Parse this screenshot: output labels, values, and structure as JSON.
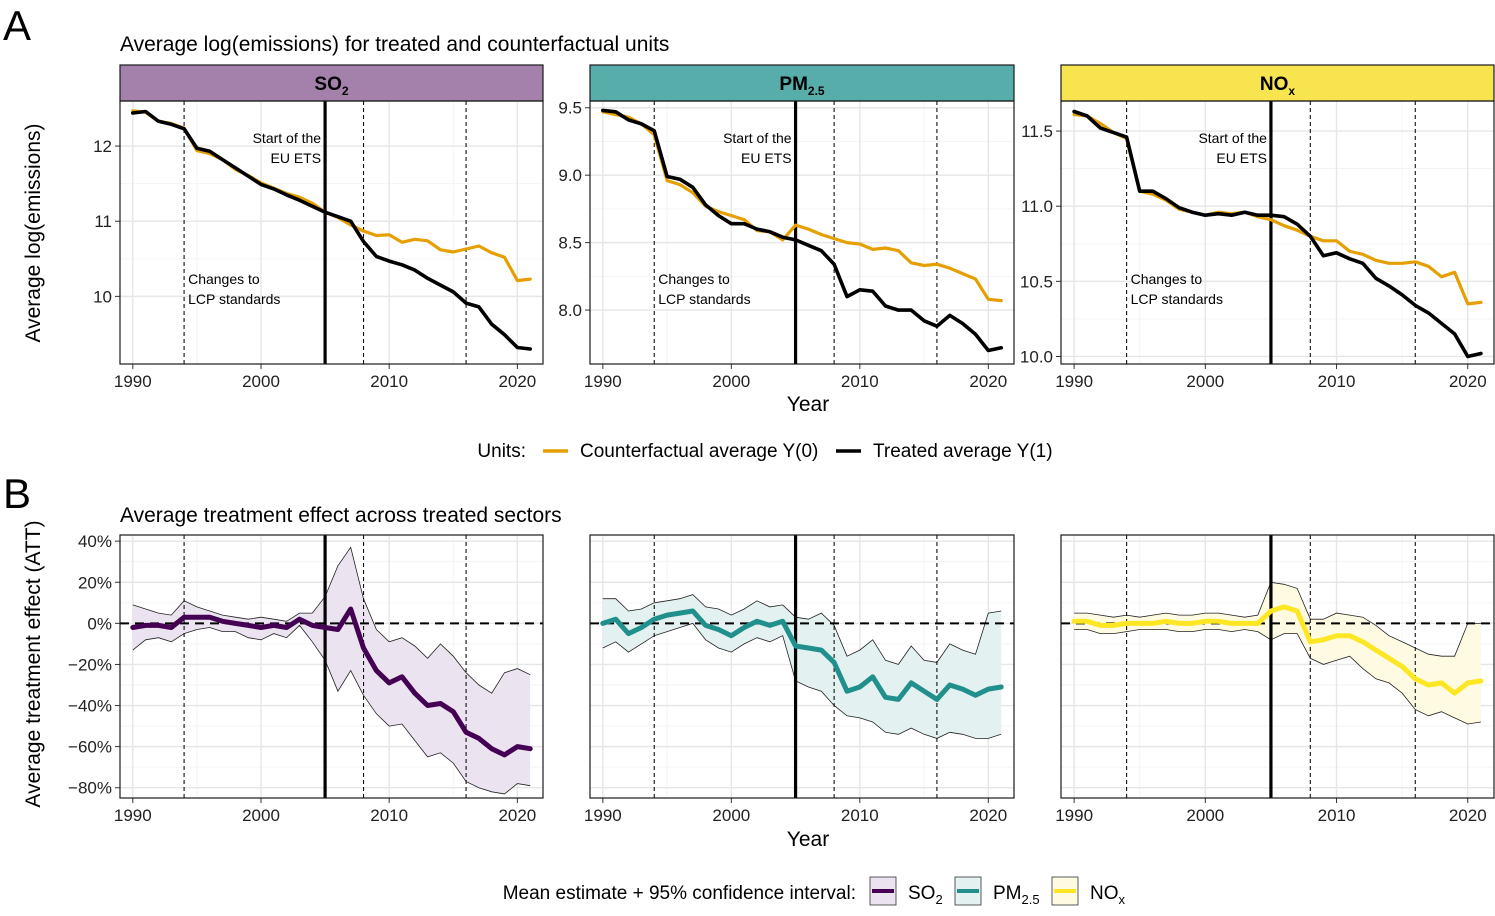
{
  "panel_labels": {
    "a": "A",
    "b": "B"
  },
  "titles": {
    "a": "Average log(emissions) for treated and counterfactual units",
    "b": "Average treatment effect across treated sectors"
  },
  "strips": [
    {
      "base": "SO",
      "sub": "2",
      "color": "#a381ab"
    },
    {
      "base": "PM",
      "sub": "2.5",
      "color": "#57adaa"
    },
    {
      "base": "NO",
      "sub": "x",
      "color": "#f8e44e"
    }
  ],
  "annotations": {
    "ets_line1": "Start of the",
    "ets_line2": "EU ETS",
    "lcp_line1": "Changes to",
    "lcp_line2": "LCP standards"
  },
  "axes": {
    "xlabel": "Year",
    "ylabel_a": "Average log(emissions)",
    "ylabel_b": "Average treatment effect (ATT)"
  },
  "legend_a": {
    "title": "Units:",
    "items": [
      {
        "label": "Counterfactual average Y(0)",
        "color": "#e69f00"
      },
      {
        "label": "Treated average Y(1)",
        "color": "#000000"
      }
    ]
  },
  "legend_b": {
    "title": "Mean estimate + 95% confidence interval:",
    "items": [
      {
        "base": "SO",
        "sub": "2",
        "line": "#440154",
        "fill": "#ebe3ef"
      },
      {
        "base": "PM",
        "sub": "2.5",
        "line": "#21908c",
        "fill": "#e3f1f0"
      },
      {
        "base": "NO",
        "sub": "x",
        "line": "#fde725",
        "fill": "#fefbe2"
      }
    ]
  },
  "chart_data": [
    {
      "type": "line",
      "panel": "A",
      "title": "Average log(emissions) for treated and counterfactual units",
      "xlabel": "Year",
      "ylabel": "Average log(emissions)",
      "x_ticks": [
        1990,
        2000,
        2010,
        2020
      ],
      "xlim": [
        1989,
        2022
      ],
      "vlines_dashed": [
        1994,
        2008,
        2016
      ],
      "vline_solid": 2005,
      "facets": [
        {
          "name": "SO2",
          "ylim": [
            9.1,
            12.6
          ],
          "y_ticks": [
            10,
            11,
            12
          ],
          "y_tick_labels": [
            "10",
            "11",
            "12"
          ],
          "x": [
            1990,
            1991,
            1992,
            1993,
            1994,
            1995,
            1996,
            1997,
            1998,
            1999,
            2000,
            2001,
            2002,
            2003,
            2004,
            2005,
            2006,
            2007,
            2008,
            2009,
            2010,
            2011,
            2012,
            2013,
            2014,
            2015,
            2016,
            2017,
            2018,
            2019,
            2020,
            2021
          ],
          "series": [
            {
              "name": "Counterfactual average Y(0)",
              "color": "#e69f00",
              "values": [
                12.47,
                12.45,
                12.33,
                12.3,
                12.24,
                11.94,
                11.9,
                11.82,
                11.69,
                11.61,
                11.51,
                11.44,
                11.37,
                11.32,
                11.24,
                11.12,
                11.05,
                10.95,
                10.87,
                10.81,
                10.82,
                10.72,
                10.76,
                10.74,
                10.62,
                10.59,
                10.63,
                10.67,
                10.58,
                10.52,
                10.21,
                10.23
              ]
            },
            {
              "name": "Treated average Y(1)",
              "color": "#000000",
              "values": [
                12.44,
                12.46,
                12.33,
                12.29,
                12.23,
                11.97,
                11.93,
                11.82,
                11.71,
                11.6,
                11.49,
                11.43,
                11.35,
                11.28,
                11.2,
                11.12,
                11.06,
                11.0,
                10.73,
                10.53,
                10.47,
                10.42,
                10.35,
                10.24,
                10.15,
                10.06,
                9.91,
                9.86,
                9.63,
                9.49,
                9.32,
                9.3
              ]
            }
          ]
        },
        {
          "name": "PM2.5",
          "ylim": [
            7.6,
            9.55
          ],
          "y_ticks": [
            8.0,
            8.5,
            9.0,
            9.5
          ],
          "y_tick_labels": [
            "8.0",
            "8.5",
            "9.0",
            "9.5"
          ],
          "x": [
            1990,
            1991,
            1992,
            1993,
            1994,
            1995,
            1996,
            1997,
            1998,
            1999,
            2000,
            2001,
            2002,
            2003,
            2004,
            2005,
            2006,
            2007,
            2008,
            2009,
            2010,
            2011,
            2012,
            2013,
            2014,
            2015,
            2016,
            2017,
            2018,
            2019,
            2020,
            2021
          ],
          "series": [
            {
              "name": "Counterfactual average Y(0)",
              "color": "#e69f00",
              "values": [
                9.47,
                9.45,
                9.43,
                9.38,
                9.3,
                8.96,
                8.93,
                8.87,
                8.77,
                8.73,
                8.7,
                8.67,
                8.59,
                8.58,
                8.52,
                8.63,
                8.6,
                8.56,
                8.53,
                8.5,
                8.49,
                8.45,
                8.46,
                8.44,
                8.35,
                8.33,
                8.34,
                8.31,
                8.27,
                8.23,
                8.08,
                8.07
              ]
            },
            {
              "name": "Treated average Y(1)",
              "color": "#000000",
              "values": [
                9.48,
                9.47,
                9.41,
                9.38,
                9.33,
                8.99,
                8.97,
                8.91,
                8.78,
                8.7,
                8.64,
                8.64,
                8.6,
                8.58,
                8.54,
                8.52,
                8.48,
                8.44,
                8.34,
                8.1,
                8.15,
                8.14,
                8.03,
                8.0,
                8.0,
                7.92,
                7.88,
                7.96,
                7.9,
                7.82,
                7.7,
                7.72
              ]
            }
          ]
        },
        {
          "name": "NOx",
          "ylim": [
            9.95,
            11.7
          ],
          "y_ticks": [
            10.0,
            10.5,
            11.0,
            11.5
          ],
          "y_tick_labels": [
            "10.0",
            "10.5",
            "11.0",
            "11.5"
          ],
          "x": [
            1990,
            1991,
            1992,
            1993,
            1994,
            1995,
            1996,
            1997,
            1998,
            1999,
            2000,
            2001,
            2002,
            2003,
            2004,
            2005,
            2006,
            2007,
            2008,
            2009,
            2010,
            2011,
            2012,
            2013,
            2014,
            2015,
            2016,
            2017,
            2018,
            2019,
            2020,
            2021
          ],
          "series": [
            {
              "name": "Counterfactual average Y(0)",
              "color": "#e69f00",
              "values": [
                11.61,
                11.6,
                11.55,
                11.49,
                11.45,
                11.1,
                11.08,
                11.04,
                10.98,
                10.96,
                10.94,
                10.96,
                10.95,
                10.96,
                10.93,
                10.91,
                10.87,
                10.84,
                10.8,
                10.77,
                10.77,
                10.7,
                10.68,
                10.64,
                10.62,
                10.62,
                10.63,
                10.6,
                10.53,
                10.56,
                10.35,
                10.36
              ]
            },
            {
              "name": "Treated average Y(1)",
              "color": "#000000",
              "values": [
                11.63,
                11.6,
                11.52,
                11.49,
                11.46,
                11.1,
                11.1,
                11.05,
                10.99,
                10.96,
                10.94,
                10.95,
                10.94,
                10.96,
                10.94,
                10.94,
                10.93,
                10.88,
                10.8,
                10.67,
                10.69,
                10.65,
                10.62,
                10.52,
                10.47,
                10.41,
                10.34,
                10.29,
                10.22,
                10.15,
                10.0,
                10.02
              ]
            }
          ]
        }
      ]
    },
    {
      "type": "area",
      "panel": "B",
      "title": "Average treatment effect across treated sectors",
      "xlabel": "Year",
      "ylabel": "Average treatment effect (ATT)",
      "x_ticks": [
        1990,
        2000,
        2010,
        2020
      ],
      "xlim": [
        1989,
        2022
      ],
      "ylim": [
        -85,
        43
      ],
      "y_ticks": [
        -80,
        -60,
        -40,
        -20,
        0,
        20,
        40
      ],
      "y_tick_labels": [
        "−80%",
        "−60%",
        "−40%",
        "−20%",
        "0%",
        "20%",
        "40%"
      ],
      "vlines_dashed": [
        1994,
        2008,
        2016
      ],
      "vline_solid": 2005,
      "hline_dashed": 0,
      "facets": [
        {
          "name": "SO2",
          "line_color": "#440154",
          "fill_color": "#ebe3ef",
          "x": [
            1990,
            1991,
            1992,
            1993,
            1994,
            1995,
            1996,
            1997,
            1998,
            1999,
            2000,
            2001,
            2002,
            2003,
            2004,
            2005,
            2006,
            2007,
            2008,
            2009,
            2010,
            2011,
            2012,
            2013,
            2014,
            2015,
            2016,
            2017,
            2018,
            2019,
            2020,
            2021
          ],
          "mean": [
            -2,
            -1,
            -1,
            -2,
            3,
            3,
            3,
            1,
            0,
            -1,
            -2,
            -1,
            -2,
            2,
            -1,
            -2,
            -3,
            7,
            -12,
            -23,
            -29,
            -26,
            -34,
            -40,
            -39,
            -43,
            -53,
            -56,
            -61,
            -64,
            -60,
            -61
          ],
          "upper": [
            9,
            7,
            5,
            4,
            11,
            8,
            6,
            4,
            3,
            2,
            3,
            2,
            1,
            5,
            5,
            13,
            28,
            37,
            12,
            -3,
            -9,
            -7,
            -11,
            -17,
            -10,
            -16,
            -24,
            -30,
            -34,
            -24,
            -22,
            -25
          ],
          "lower": [
            -13,
            -8,
            -7,
            -9,
            -5,
            -3,
            -2,
            -4,
            -4,
            -7,
            -8,
            -5,
            -7,
            -1,
            -9,
            -18,
            -33,
            -23,
            -35,
            -44,
            -50,
            -49,
            -57,
            -65,
            -63,
            -68,
            -77,
            -80,
            -82,
            -83,
            -78,
            -79
          ]
        },
        {
          "name": "PM2.5",
          "line_color": "#21908c",
          "fill_color": "#e3f1f0",
          "x": [
            1990,
            1991,
            1992,
            1993,
            1994,
            1995,
            1996,
            1997,
            1998,
            1999,
            2000,
            2001,
            2002,
            2003,
            2004,
            2005,
            2006,
            2007,
            2008,
            2009,
            2010,
            2011,
            2012,
            2013,
            2014,
            2015,
            2016,
            2017,
            2018,
            2019,
            2020,
            2021
          ],
          "mean": [
            0,
            2,
            -5,
            -2,
            2,
            4,
            5,
            6,
            -1,
            -3,
            -6,
            -2,
            1,
            -1,
            1,
            -11,
            -12,
            -13,
            -19,
            -33,
            -31,
            -26,
            -36,
            -37,
            -29,
            -33,
            -37,
            -30,
            -32,
            -35,
            -32,
            -31
          ],
          "upper": [
            12,
            12,
            6,
            7,
            10,
            11,
            12,
            14,
            8,
            7,
            4,
            7,
            11,
            8,
            9,
            3,
            2,
            5,
            -1,
            -16,
            -13,
            -8,
            -18,
            -20,
            -11,
            -18,
            -19,
            -10,
            -13,
            -15,
            5,
            6
          ],
          "lower": [
            -12,
            -9,
            -14,
            -10,
            -6,
            -4,
            -2,
            0,
            -8,
            -12,
            -14,
            -10,
            -7,
            -9,
            -6,
            -28,
            -31,
            -33,
            -40,
            -45,
            -46,
            -48,
            -53,
            -54,
            -51,
            -54,
            -56,
            -53,
            -54,
            -56,
            -56,
            -54
          ]
        },
        {
          "name": "NOx",
          "line_color": "#fde725",
          "fill_color": "#fefbe2",
          "x": [
            1990,
            1991,
            1992,
            1993,
            1994,
            1995,
            1996,
            1997,
            1998,
            1999,
            2000,
            2001,
            2002,
            2003,
            2004,
            2005,
            2006,
            2007,
            2008,
            2009,
            2010,
            2011,
            2012,
            2013,
            2014,
            2015,
            2016,
            2017,
            2018,
            2019,
            2020,
            2021
          ],
          "mean": [
            1,
            1,
            -1,
            -1,
            0,
            0,
            0,
            1,
            0,
            0,
            1,
            1,
            0,
            0,
            0,
            6,
            8,
            6,
            -9,
            -8,
            -6,
            -6,
            -9,
            -13,
            -17,
            -21,
            -27,
            -30,
            -29,
            -34,
            -29,
            -28
          ],
          "upper": [
            5,
            5,
            4,
            3,
            4,
            3,
            4,
            5,
            4,
            4,
            5,
            5,
            4,
            3,
            4,
            20,
            19,
            17,
            2,
            2,
            5,
            4,
            3,
            -1,
            -6,
            -9,
            -12,
            -15,
            -16,
            -16,
            0,
            0
          ],
          "lower": [
            -3,
            -3,
            -5,
            -5,
            -4,
            -3,
            -3,
            -3,
            -4,
            -4,
            -3,
            -3,
            -4,
            -3,
            -4,
            -8,
            -5,
            -5,
            -17,
            -20,
            -18,
            -16,
            -22,
            -27,
            -29,
            -34,
            -42,
            -45,
            -43,
            -46,
            -49,
            -48
          ]
        }
      ]
    }
  ]
}
